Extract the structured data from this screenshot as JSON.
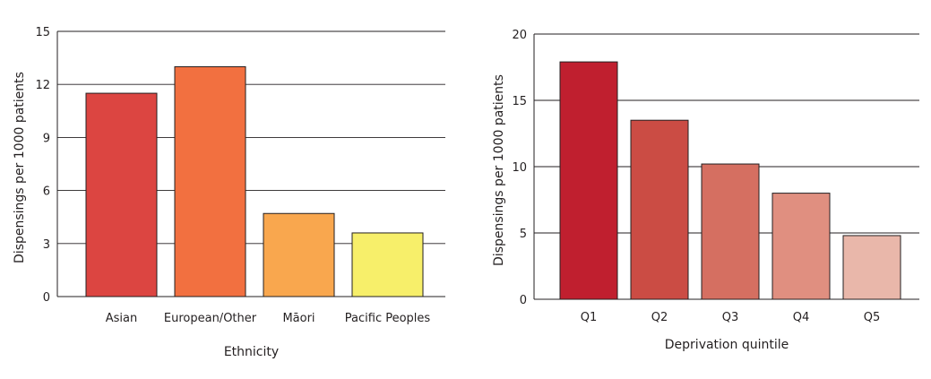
{
  "chart_data": [
    {
      "type": "bar",
      "xlabel": "Ethnicity",
      "ylabel": "Dispensings per 1000 patients",
      "ylim": [
        0,
        15
      ],
      "yticks": [
        0,
        3,
        6,
        9,
        12,
        15
      ],
      "categories": [
        "Asian",
        "European/Other",
        "Māori",
        "Pacific Peoples"
      ],
      "values": [
        11.5,
        13.0,
        4.7,
        3.6
      ],
      "colors": [
        "#dc4541",
        "#f27040",
        "#f9a74e",
        "#f7ef6a"
      ],
      "grid": true
    },
    {
      "type": "bar",
      "xlabel": "Deprivation quintile",
      "ylabel": "Dispensings per 1000 patients",
      "ylim": [
        0,
        20
      ],
      "yticks": [
        0,
        5,
        10,
        15,
        20
      ],
      "categories": [
        "Q1",
        "Q2",
        "Q3",
        "Q4",
        "Q5"
      ],
      "values": [
        17.9,
        13.5,
        10.2,
        8.0,
        4.8
      ],
      "colors": [
        "#c01f2f",
        "#cb4c44",
        "#d56f61",
        "#e08f80",
        "#e9b7aa"
      ],
      "grid": true
    }
  ]
}
